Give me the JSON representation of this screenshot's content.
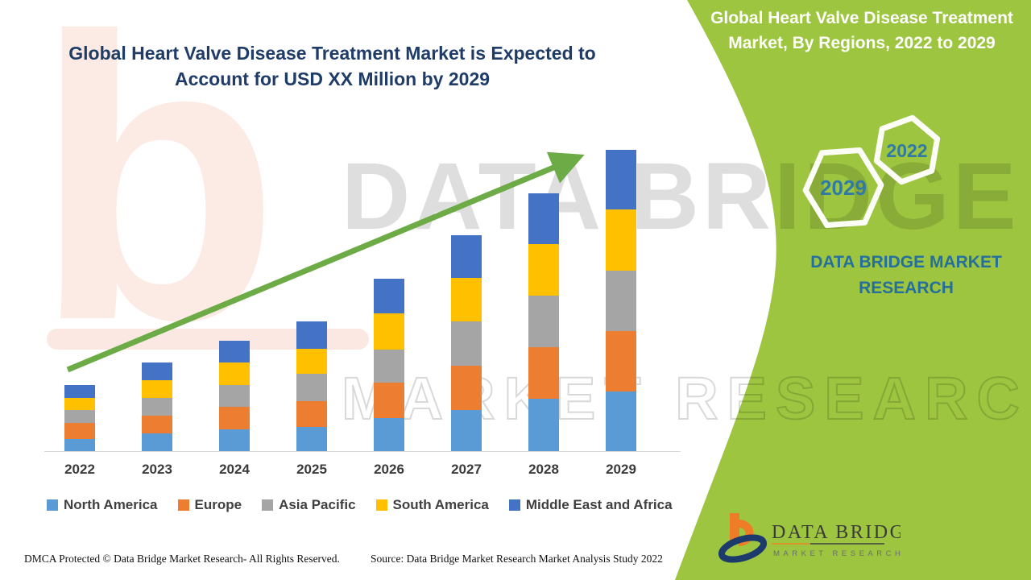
{
  "titles": {
    "main_line1": "Global Heart Valve Disease Treatment Market is Expected to",
    "main_line2": "Account for USD XX Million by 2029",
    "panel_line1": "Global Heart Valve Disease Treatment",
    "panel_line2": "Market, By Regions, 2022 to 2029"
  },
  "panel": {
    "bg_color": "#9dc53f",
    "hexagons": [
      {
        "label": "2029"
      },
      {
        "label": "2022"
      }
    ],
    "brand_line1": "DATA BRIDGE MARKET",
    "brand_line2": "RESEARCH",
    "brand_text_color": "#256f9e"
  },
  "watermark": {
    "big_letter": "b",
    "line1": "DATA BRIDGE",
    "line2": "MARKET RESEARCH"
  },
  "chart_data": {
    "type": "bar",
    "stacked": true,
    "title": "Global Heart Valve Disease Treatment Market, By Regions, 2022 to 2029",
    "xlabel": "",
    "ylabel": "",
    "unit": "relative index (y-axis unlabeled; market value shown as USD XX Million)",
    "grid": false,
    "legend_position": "bottom",
    "categories": [
      "2022",
      "2023",
      "2024",
      "2025",
      "2026",
      "2027",
      "2028",
      "2029"
    ],
    "series": [
      {
        "name": "North America",
        "color": "#5b9bd5",
        "values": [
          15,
          22,
          27,
          30,
          41,
          51,
          65,
          74
        ]
      },
      {
        "name": "Europe",
        "color": "#ed7d31",
        "values": [
          20,
          22,
          28,
          32,
          44,
          55,
          64,
          75
        ]
      },
      {
        "name": "Asia Pacific",
        "color": "#a5a5a5",
        "values": [
          16,
          22,
          27,
          34,
          41,
          55,
          64,
          75
        ]
      },
      {
        "name": "South America",
        "color": "#ffc000",
        "values": [
          15,
          22,
          28,
          31,
          45,
          54,
          64,
          76
        ]
      },
      {
        "name": "Middle East and Africa",
        "color": "#4472c4",
        "values": [
          16,
          22,
          27,
          34,
          43,
          53,
          63,
          74
        ]
      }
    ],
    "stack_totals": [
      82,
      110,
      137,
      161,
      214,
      268,
      320,
      374
    ],
    "trend_arrow": {
      "present": true,
      "color": "#6cab46",
      "direction": "up-right"
    },
    "note": "Values estimated from pixel heights; each year splits roughly equally across the five regions."
  },
  "footer": {
    "dmca": "DMCA Protected © Data Bridge Market Research- All Rights Reserved.",
    "source": "Source: Data Bridge Market Research Market Analysis Study 2022"
  },
  "logo": {
    "line1": "DATA BRIDGE",
    "line2": "MARKET RESEARCH"
  }
}
